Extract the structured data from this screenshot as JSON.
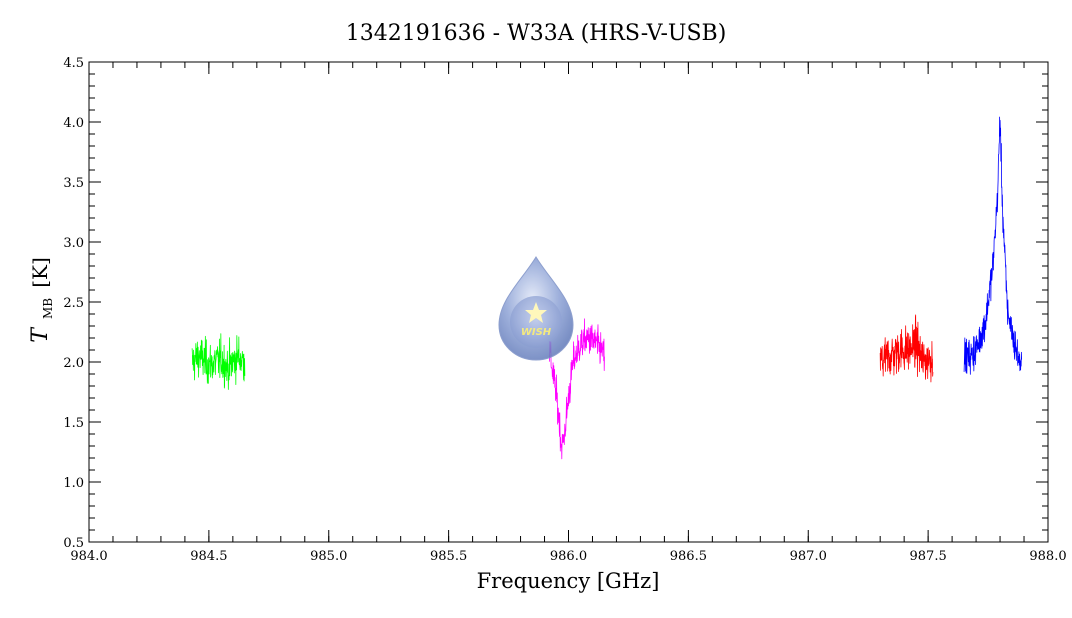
{
  "chart_data": {
    "type": "line",
    "title": "1342191636 - W33A (HRS-V-USB)",
    "xlabel": "Frequency [GHz]",
    "ylabel": {
      "symbol": "T",
      "subscript": "MB",
      "unit": "[K]"
    },
    "xlim": [
      984.0,
      988.0
    ],
    "ylim": [
      0.5,
      4.5
    ],
    "x_ticks": [
      "984.0",
      "984.5",
      "985.0",
      "985.5",
      "986.0",
      "986.5",
      "987.0",
      "987.5",
      "988.0"
    ],
    "y_ticks": [
      "0.5",
      "1.0",
      "1.5",
      "2.0",
      "2.5",
      "3.0",
      "3.5",
      "4.0",
      "4.5"
    ],
    "grid": false,
    "logo": {
      "text": "WISH"
    },
    "series": [
      {
        "color": "#00ff00",
        "x": [
          984.43,
          984.46,
          984.5,
          984.55,
          984.58,
          984.62,
          984.65
        ],
        "y": [
          2.0,
          2.05,
          1.98,
          2.02,
          1.95,
          2.05,
          2.0
        ],
        "noise": 0.17
      },
      {
        "color": "#ff00ff",
        "x": [
          985.92,
          985.94,
          985.96,
          985.97,
          985.98,
          986.0,
          986.02,
          986.05,
          986.08,
          986.12,
          986.15
        ],
        "y": [
          2.1,
          1.85,
          1.55,
          1.3,
          1.35,
          1.7,
          2.0,
          2.15,
          2.2,
          2.15,
          2.05
        ],
        "noise": 0.14
      },
      {
        "color": "#ff0000",
        "x": [
          987.3,
          987.34,
          987.38,
          987.42,
          987.45,
          987.48,
          987.52
        ],
        "y": [
          2.0,
          2.05,
          2.1,
          2.1,
          2.15,
          2.0,
          2.05
        ],
        "noise": 0.19
      },
      {
        "color": "#0000ff",
        "x": [
          987.65,
          987.68,
          987.71,
          987.74,
          987.77,
          987.79,
          987.8,
          987.81,
          987.83,
          987.86,
          987.89
        ],
        "y": [
          2.05,
          2.05,
          2.15,
          2.35,
          2.8,
          3.4,
          4.05,
          3.3,
          2.45,
          2.15,
          1.95
        ],
        "noise": 0.14
      }
    ]
  }
}
